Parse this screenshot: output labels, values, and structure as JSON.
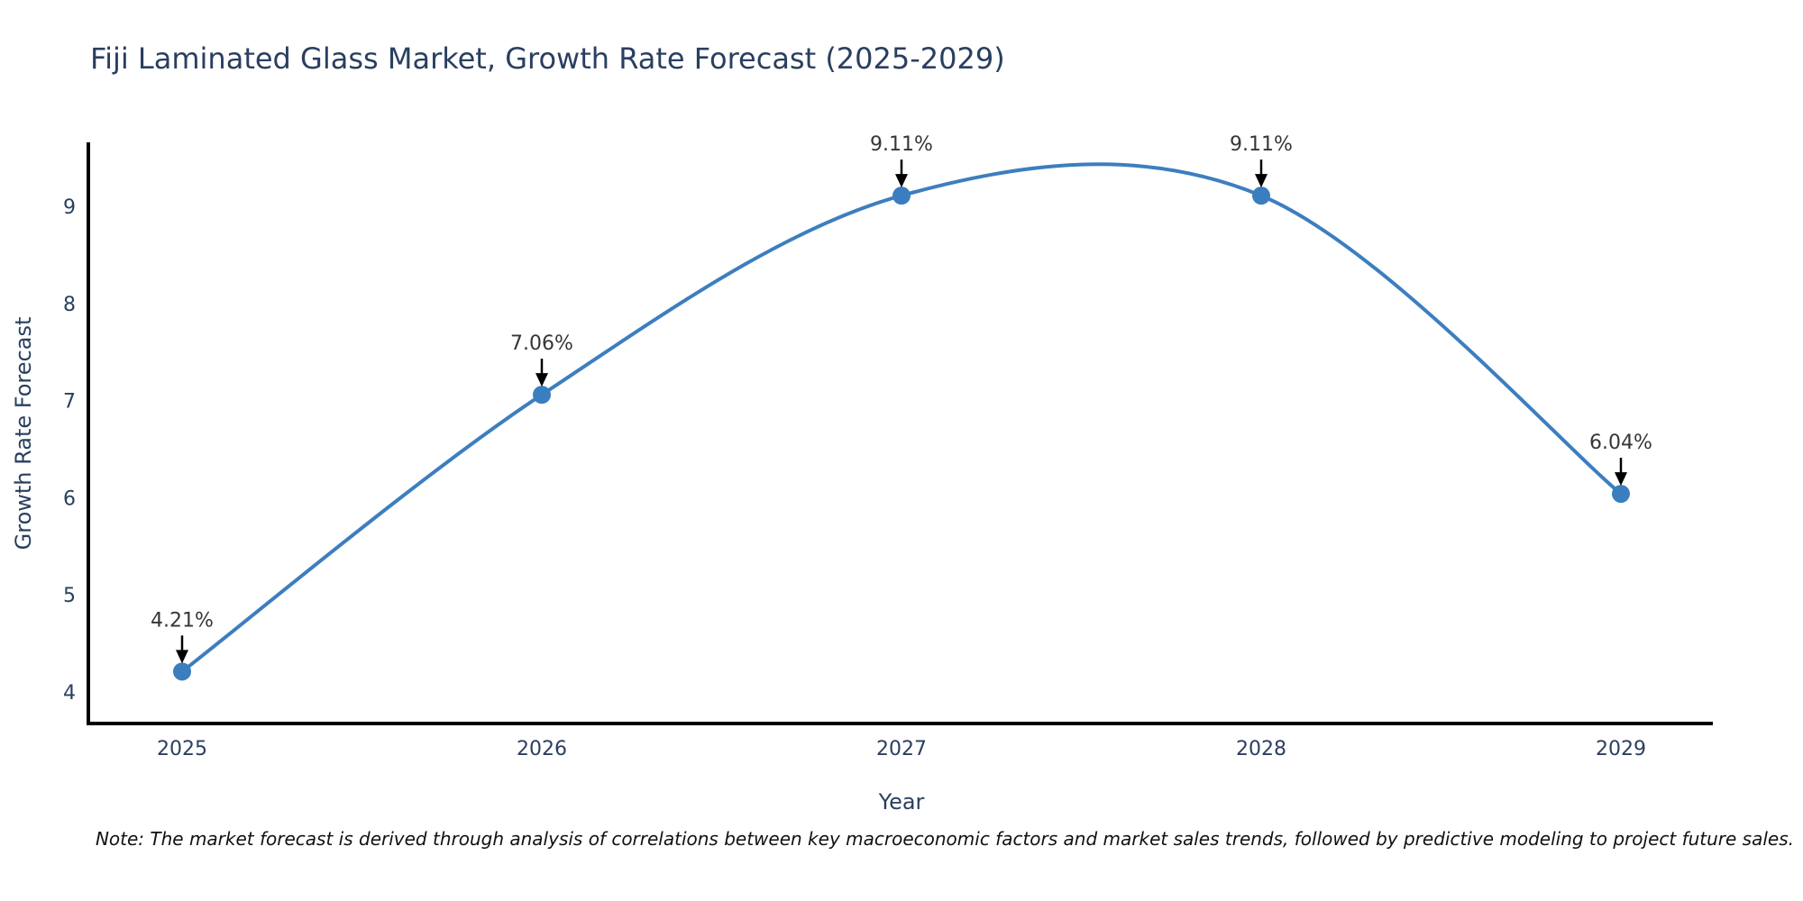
{
  "title": "Fiji Laminated Glass Market, Growth Rate Forecast (2025-2029)",
  "note": "Note: The market forecast is derived through analysis of correlations between key macroeconomic factors and market sales trends, followed by predictive modeling to project future sales.",
  "chart_data": {
    "type": "line",
    "title": "Fiji Laminated Glass Market, Growth Rate Forecast (2025-2029)",
    "xlabel": "Year",
    "ylabel": "Growth Rate Forecast",
    "x": [
      2025,
      2026,
      2027,
      2028,
      2029
    ],
    "series": [
      {
        "name": "Growth Rate Forecast",
        "values": [
          4.21,
          7.06,
          9.11,
          9.11,
          6.04
        ],
        "point_labels": [
          "4.21%",
          "7.06%",
          "9.11%",
          "9.11%",
          "6.04%"
        ]
      }
    ],
    "xticks": [
      "2025",
      "2026",
      "2027",
      "2028",
      "2029"
    ],
    "yticks": [
      4,
      5,
      6,
      7,
      8,
      9
    ],
    "ylim": [
      3.67,
      9.65
    ],
    "xlim": [
      2024.74,
      2029.26
    ],
    "grid": false,
    "legend": "none",
    "line_style": "smooth-spline",
    "annotations": "value labels with down arrows above each point",
    "colors": {
      "line": "#3d7ebf",
      "marker": "#3a7ebf",
      "axis": "#000000",
      "chart_text": "#2a3f5f",
      "label_text": "#363636",
      "note_text": "#111111",
      "background": "#ffffff"
    }
  }
}
